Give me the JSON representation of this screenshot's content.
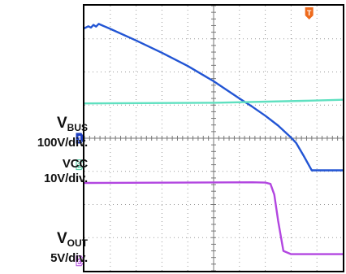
{
  "chart_data": {
    "type": "line",
    "grid": true,
    "divisions": {
      "x": 10,
      "y": 8
    },
    "ylim": [
      0,
      8
    ],
    "xlim": [
      0,
      10
    ],
    "trigger_marker": "T",
    "series": [
      {
        "name": "VBUS",
        "name_main": "V",
        "name_sub": "BUS",
        "scale": "100V/div.",
        "channel": "1",
        "color": "#2255d4",
        "marker_color": "#1f3fbf",
        "reference_level": 4.0,
        "x": [
          0.0,
          0.15,
          0.25,
          0.35,
          0.45,
          0.55,
          1.0,
          2.0,
          3.0,
          4.0,
          5.0,
          6.0,
          6.5,
          7.0,
          7.5,
          8.0,
          8.2,
          8.5,
          8.8,
          9.0,
          10.0
        ],
        "y": [
          7.32,
          7.38,
          7.34,
          7.42,
          7.37,
          7.45,
          7.3,
          6.95,
          6.58,
          6.18,
          5.72,
          5.2,
          4.95,
          4.68,
          4.38,
          4.02,
          3.85,
          3.45,
          3.03,
          3.03,
          3.03
        ]
      },
      {
        "name": "VCC",
        "name_main": "VCC",
        "name_sub": "",
        "scale": "10V/div.",
        "channel": "2",
        "color": "#5fe0c0",
        "marker_color": "#4cc9a0",
        "reference_level": 3.2,
        "x": [
          0.0,
          5.0,
          8.5,
          10.0
        ],
        "y": [
          5.05,
          5.07,
          5.13,
          5.16
        ]
      },
      {
        "name": "VOUT",
        "name_main": "V",
        "name_sub": "OUT",
        "scale": "5V/div.",
        "channel": "3",
        "color": "#b246e0",
        "marker_color": "#b246e0",
        "reference_level": 0.3,
        "x": [
          0.0,
          6.5,
          7.0,
          7.2,
          7.35,
          7.5,
          7.7,
          8.0,
          10.0
        ],
        "y": [
          2.65,
          2.67,
          2.66,
          2.62,
          2.3,
          1.5,
          0.6,
          0.5,
          0.5
        ]
      }
    ]
  }
}
